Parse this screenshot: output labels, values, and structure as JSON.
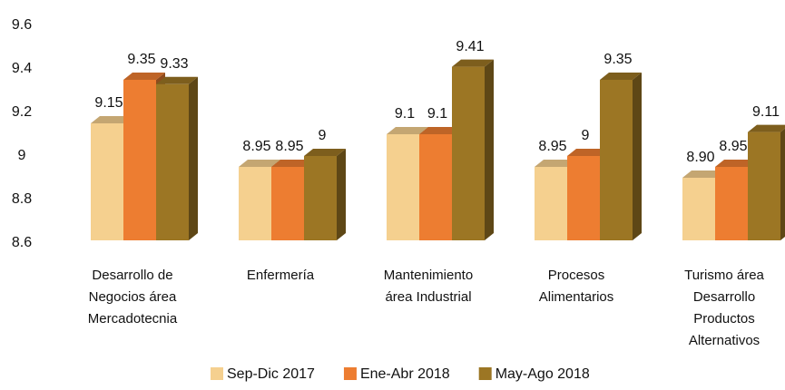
{
  "chart_data": {
    "type": "bar3d",
    "categories": [
      "Desarrollo de\nNegocios área\nMercadotecnia",
      "Enfermería",
      "Mantenimiento\nárea Industrial",
      "Procesos\nAlimentarios",
      "Turismo área\nDesarrollo\nProductos\nAlternativos"
    ],
    "series": [
      {
        "name": "Sep-Dic 2017",
        "color": "#f5d08f",
        "values": [
          9.15,
          8.95,
          9.1,
          8.95,
          8.9
        ],
        "value_labels": [
          "9.15",
          "8.95",
          "9.1",
          "8.95",
          "8.90"
        ]
      },
      {
        "name": "Ene-Abr 2018",
        "color": "#ed7d31",
        "values": [
          9.35,
          8.95,
          9.1,
          9,
          8.95
        ]
      },
      {
        "name": "May-Ago 2018",
        "color": "#9c7624",
        "values": [
          9.33,
          9,
          9.41,
          9.35,
          9.11
        ]
      }
    ],
    "ylim": [
      8.6,
      9.6
    ],
    "yticks": [
      8.6,
      8.8,
      9,
      9.2,
      9.4,
      9.6
    ],
    "grid": false,
    "legend": "bottom"
  }
}
